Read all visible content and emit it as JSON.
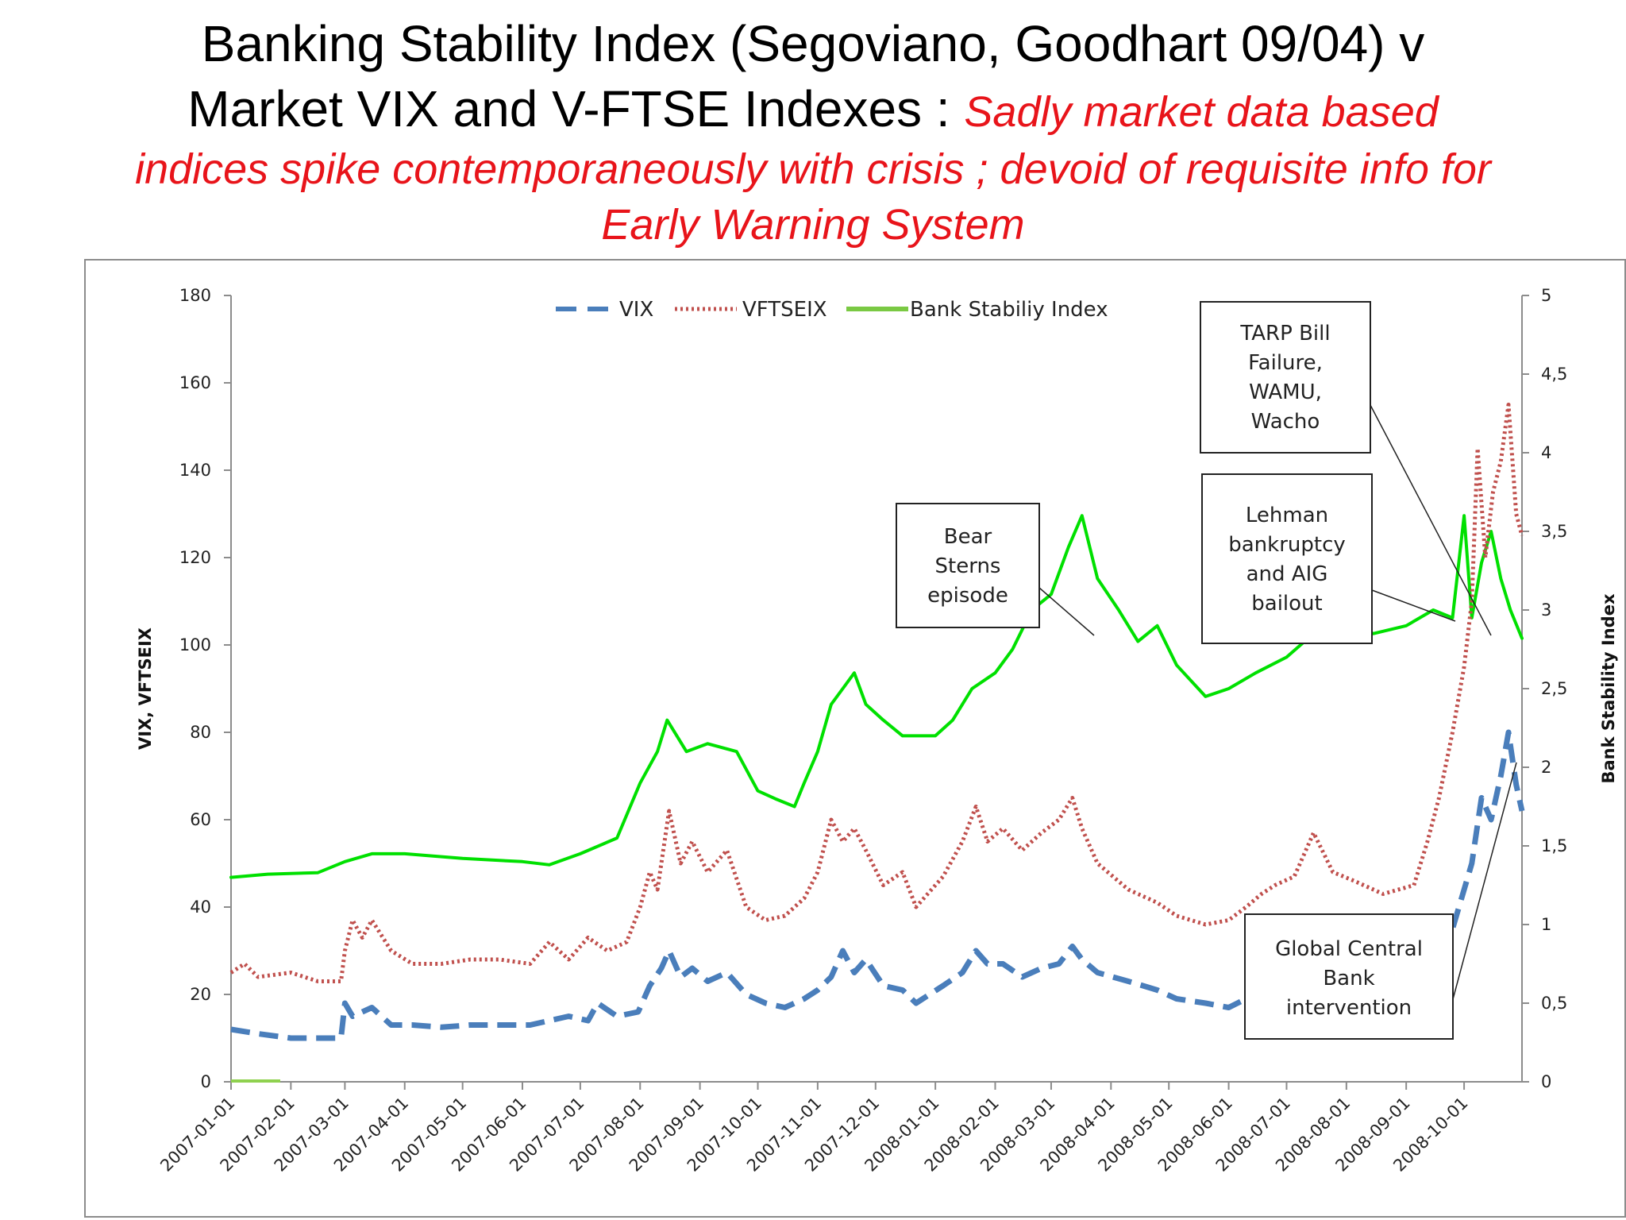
{
  "title": {
    "line1": "Banking Stability Index (Segoviano, Goodhart 09/04) v",
    "line2_black": "Market VIX and V-FTSE Indexes : ",
    "line2_red": "Sadly market data based",
    "line3_red": "indices spike contemporaneously with crisis ; devoid of requisite info for",
    "line4_red": "Early Warning System"
  },
  "chart_data": {
    "type": "line",
    "x_categories": [
      "2007-01-01",
      "2007-02-01",
      "2007-03-01",
      "2007-04-01",
      "2007-05-01",
      "2007-06-01",
      "2007-07-01",
      "2007-08-01",
      "2007-09-01",
      "2007-10-01",
      "2007-11-01",
      "2007-12-01",
      "2008-01-01",
      "2008-02-01",
      "2008-03-01",
      "2008-04-01",
      "2008-05-01",
      "2008-06-01",
      "2008-07-01",
      "2008-08-01",
      "2008-09-01",
      "2008-10-01"
    ],
    "y_left": {
      "label": "VIX, VFTSEIX",
      "range": [
        0,
        180
      ],
      "ticks": [
        "0",
        "20",
        "40",
        "60",
        "80",
        "100",
        "120",
        "140",
        "160",
        "180"
      ]
    },
    "y_right": {
      "label": "Bank Stability Index",
      "range": [
        0,
        5
      ],
      "ticks": [
        "0",
        "0,5",
        "1",
        "1,5",
        "2",
        "2,5",
        "3",
        "3,5",
        "4",
        "4,5",
        "5"
      ]
    },
    "legend": {
      "position": "top-center"
    },
    "grid": false,
    "series": [
      {
        "name": "VIX",
        "axis": "left",
        "color": "#4a7ebb",
        "style": "dashed",
        "points": [
          [
            "2007-01-01",
            12
          ],
          [
            "2007-01-15",
            11
          ],
          [
            "2007-02-01",
            10
          ],
          [
            "2007-02-15",
            10
          ],
          [
            "2007-02-27",
            10
          ],
          [
            "2007-03-01",
            18
          ],
          [
            "2007-03-05",
            15
          ],
          [
            "2007-03-15",
            17
          ],
          [
            "2007-03-25",
            13
          ],
          [
            "2007-04-05",
            13
          ],
          [
            "2007-04-20",
            12.5
          ],
          [
            "2007-05-05",
            13
          ],
          [
            "2007-05-20",
            13
          ],
          [
            "2007-06-05",
            13
          ],
          [
            "2007-06-25",
            15
          ],
          [
            "2007-07-05",
            14
          ],
          [
            "2007-07-10",
            18
          ],
          [
            "2007-07-20",
            15
          ],
          [
            "2007-07-31",
            16
          ],
          [
            "2007-08-06",
            22
          ],
          [
            "2007-08-12",
            26
          ],
          [
            "2007-08-16",
            30
          ],
          [
            "2007-08-22",
            24
          ],
          [
            "2007-08-28",
            26
          ],
          [
            "2007-09-05",
            23
          ],
          [
            "2007-09-15",
            25
          ],
          [
            "2007-09-25",
            20
          ],
          [
            "2007-10-05",
            18
          ],
          [
            "2007-10-15",
            17
          ],
          [
            "2007-10-25",
            19
          ],
          [
            "2007-11-01",
            21
          ],
          [
            "2007-11-08",
            24
          ],
          [
            "2007-11-14",
            30
          ],
          [
            "2007-11-20",
            25
          ],
          [
            "2007-11-26",
            28
          ],
          [
            "2007-12-05",
            22
          ],
          [
            "2007-12-15",
            21
          ],
          [
            "2007-12-22",
            18
          ],
          [
            "2008-01-05",
            22
          ],
          [
            "2008-01-15",
            25
          ],
          [
            "2008-01-22",
            30
          ],
          [
            "2008-01-28",
            27
          ],
          [
            "2008-02-05",
            27
          ],
          [
            "2008-02-15",
            24
          ],
          [
            "2008-02-25",
            26
          ],
          [
            "2008-03-05",
            27
          ],
          [
            "2008-03-12",
            31
          ],
          [
            "2008-03-17",
            28
          ],
          [
            "2008-03-25",
            25
          ],
          [
            "2008-04-10",
            23
          ],
          [
            "2008-04-25",
            21
          ],
          [
            "2008-05-05",
            19
          ],
          [
            "2008-05-20",
            18
          ],
          [
            "2008-06-01",
            17
          ],
          [
            "2008-06-10",
            19
          ],
          [
            "2008-06-18",
            21
          ],
          [
            "2008-06-25",
            23
          ],
          [
            "2008-07-05",
            24
          ],
          [
            "2008-07-15",
            28
          ],
          [
            "2008-07-25",
            25
          ],
          [
            "2008-08-05",
            22
          ],
          [
            "2008-08-20",
            20
          ],
          [
            "2008-09-05",
            22
          ],
          [
            "2008-09-15",
            29
          ],
          [
            "2008-09-25",
            35
          ],
          [
            "2008-10-01",
            44
          ],
          [
            "2008-10-05",
            50
          ],
          [
            "2008-10-10",
            65
          ],
          [
            "2008-10-15",
            60
          ],
          [
            "2008-10-20",
            70
          ],
          [
            "2008-10-24",
            80
          ],
          [
            "2008-10-28",
            68
          ],
          [
            "2008-10-31",
            62
          ]
        ]
      },
      {
        "name": "VFTSEIX",
        "axis": "left",
        "color": "#c0504d",
        "style": "dotted",
        "points": [
          [
            "2007-01-01",
            25
          ],
          [
            "2007-01-08",
            27
          ],
          [
            "2007-01-15",
            24
          ],
          [
            "2007-02-01",
            25
          ],
          [
            "2007-02-15",
            23
          ],
          [
            "2007-02-27",
            23
          ],
          [
            "2007-03-01",
            30
          ],
          [
            "2007-03-05",
            37
          ],
          [
            "2007-03-10",
            33
          ],
          [
            "2007-03-15",
            37
          ],
          [
            "2007-03-25",
            30
          ],
          [
            "2007-04-05",
            27
          ],
          [
            "2007-04-20",
            27
          ],
          [
            "2007-05-05",
            28
          ],
          [
            "2007-05-20",
            28
          ],
          [
            "2007-06-05",
            27
          ],
          [
            "2007-06-15",
            32
          ],
          [
            "2007-06-25",
            28
          ],
          [
            "2007-07-05",
            33
          ],
          [
            "2007-07-15",
            30
          ],
          [
            "2007-07-25",
            32
          ],
          [
            "2007-08-01",
            40
          ],
          [
            "2007-08-06",
            48
          ],
          [
            "2007-08-10",
            44
          ],
          [
            "2007-08-16",
            62
          ],
          [
            "2007-08-22",
            50
          ],
          [
            "2007-08-28",
            55
          ],
          [
            "2007-09-05",
            48
          ],
          [
            "2007-09-15",
            53
          ],
          [
            "2007-09-25",
            40
          ],
          [
            "2007-10-05",
            37
          ],
          [
            "2007-10-15",
            38
          ],
          [
            "2007-10-25",
            42
          ],
          [
            "2007-11-01",
            48
          ],
          [
            "2007-11-08",
            60
          ],
          [
            "2007-11-14",
            55
          ],
          [
            "2007-11-20",
            58
          ],
          [
            "2007-11-26",
            53
          ],
          [
            "2007-12-05",
            45
          ],
          [
            "2007-12-15",
            48
          ],
          [
            "2007-12-22",
            40
          ],
          [
            "2008-01-05",
            47
          ],
          [
            "2008-01-15",
            55
          ],
          [
            "2008-01-22",
            63
          ],
          [
            "2008-01-28",
            55
          ],
          [
            "2008-02-05",
            58
          ],
          [
            "2008-02-15",
            53
          ],
          [
            "2008-02-25",
            57
          ],
          [
            "2008-03-05",
            60
          ],
          [
            "2008-03-12",
            65
          ],
          [
            "2008-03-17",
            58
          ],
          [
            "2008-03-25",
            50
          ],
          [
            "2008-04-10",
            44
          ],
          [
            "2008-04-25",
            41
          ],
          [
            "2008-05-05",
            38
          ],
          [
            "2008-05-20",
            36
          ],
          [
            "2008-06-01",
            37
          ],
          [
            "2008-06-10",
            40
          ],
          [
            "2008-06-18",
            43
          ],
          [
            "2008-06-25",
            45
          ],
          [
            "2008-07-05",
            47
          ],
          [
            "2008-07-15",
            57
          ],
          [
            "2008-07-25",
            48
          ],
          [
            "2008-08-05",
            46
          ],
          [
            "2008-08-20",
            43
          ],
          [
            "2008-09-05",
            45
          ],
          [
            "2008-09-12",
            55
          ],
          [
            "2008-09-18",
            65
          ],
          [
            "2008-09-25",
            80
          ],
          [
            "2008-10-01",
            95
          ],
          [
            "2008-10-05",
            110
          ],
          [
            "2008-10-08",
            145
          ],
          [
            "2008-10-12",
            120
          ],
          [
            "2008-10-16",
            135
          ],
          [
            "2008-10-20",
            142
          ],
          [
            "2008-10-24",
            155
          ],
          [
            "2008-10-28",
            130
          ],
          [
            "2008-10-31",
            125
          ]
        ]
      },
      {
        "name": "Bank Stabiliy Index",
        "axis": "right",
        "color": "#00e000",
        "style": "solid",
        "points": [
          [
            "2007-01-01",
            1.3
          ],
          [
            "2007-01-20",
            1.32
          ],
          [
            "2007-02-15",
            1.33
          ],
          [
            "2007-03-01",
            1.4
          ],
          [
            "2007-03-15",
            1.45
          ],
          [
            "2007-04-01",
            1.45
          ],
          [
            "2007-05-01",
            1.42
          ],
          [
            "2007-06-01",
            1.4
          ],
          [
            "2007-06-15",
            1.38
          ],
          [
            "2007-07-01",
            1.45
          ],
          [
            "2007-07-20",
            1.55
          ],
          [
            "2007-08-01",
            1.9
          ],
          [
            "2007-08-10",
            2.1
          ],
          [
            "2007-08-15",
            2.3
          ],
          [
            "2007-08-25",
            2.1
          ],
          [
            "2007-09-05",
            2.15
          ],
          [
            "2007-09-20",
            2.1
          ],
          [
            "2007-10-01",
            1.85
          ],
          [
            "2007-10-10",
            1.8
          ],
          [
            "2007-10-20",
            1.75
          ],
          [
            "2007-10-25",
            1.9
          ],
          [
            "2007-11-01",
            2.1
          ],
          [
            "2007-11-08",
            2.4
          ],
          [
            "2007-11-14",
            2.5
          ],
          [
            "2007-11-20",
            2.6
          ],
          [
            "2007-11-26",
            2.4
          ],
          [
            "2007-12-05",
            2.3
          ],
          [
            "2007-12-15",
            2.2
          ],
          [
            "2008-01-01",
            2.2
          ],
          [
            "2008-01-10",
            2.3
          ],
          [
            "2008-01-20",
            2.5
          ],
          [
            "2008-02-01",
            2.6
          ],
          [
            "2008-02-10",
            2.75
          ],
          [
            "2008-02-20",
            3.0
          ],
          [
            "2008-03-01",
            3.1
          ],
          [
            "2008-03-10",
            3.4
          ],
          [
            "2008-03-17",
            3.6
          ],
          [
            "2008-03-25",
            3.2
          ],
          [
            "2008-04-05",
            3.0
          ],
          [
            "2008-04-15",
            2.8
          ],
          [
            "2008-04-25",
            2.9
          ],
          [
            "2008-05-05",
            2.65
          ],
          [
            "2008-05-20",
            2.45
          ],
          [
            "2008-06-01",
            2.5
          ],
          [
            "2008-06-15",
            2.6
          ],
          [
            "2008-07-01",
            2.7
          ],
          [
            "2008-07-15",
            2.85
          ],
          [
            "2008-08-01",
            2.9
          ],
          [
            "2008-08-15",
            2.85
          ],
          [
            "2008-09-01",
            2.9
          ],
          [
            "2008-09-15",
            3.0
          ],
          [
            "2008-09-25",
            2.95
          ],
          [
            "2008-10-01",
            3.6
          ],
          [
            "2008-10-05",
            2.95
          ],
          [
            "2008-10-10",
            3.3
          ],
          [
            "2008-10-15",
            3.5
          ],
          [
            "2008-10-20",
            3.2
          ],
          [
            "2008-10-25",
            3.0
          ],
          [
            "2008-10-31",
            2.82
          ]
        ]
      }
    ],
    "annotations": [
      {
        "id": "bear",
        "lines": [
          "Bear",
          "Sterns",
          "episode"
        ]
      },
      {
        "id": "tarp",
        "lines": [
          "TARP Bill",
          "Failure,",
          "WAMU,",
          "Wacho"
        ]
      },
      {
        "id": "lehman",
        "lines": [
          "Lehman",
          "bankruptcy",
          "and AIG",
          "bailout"
        ]
      },
      {
        "id": "gcb",
        "lines": [
          "Global Central",
          "Bank",
          "intervention"
        ]
      }
    ]
  }
}
